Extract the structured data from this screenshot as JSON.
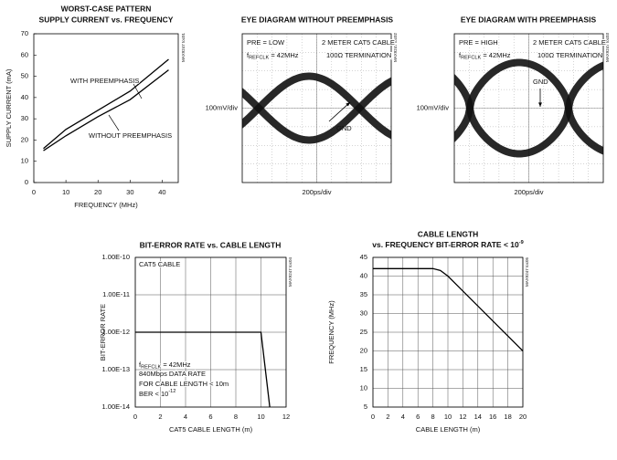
{
  "chart_data": [
    {
      "type": "line",
      "title": [
        "WORST-CASE PATTERN",
        "SUPPLY CURRENT vs. FREQUENCY"
      ],
      "x_label": "FREQUENCY (MHz)",
      "y_label": "SUPPLY CURRENT (mA)",
      "figure_code": "MAX9247 toc01",
      "x": [
        3,
        10,
        20,
        30,
        42
      ],
      "series": [
        {
          "name": "WITH PREEMPHASIS",
          "color": "#000000",
          "values": [
            16,
            25,
            34,
            43,
            58
          ]
        },
        {
          "name": "WITHOUT PREEMPHASIS",
          "color": "#000000",
          "values": [
            15,
            22,
            31,
            39,
            53
          ]
        }
      ],
      "xlim": [
        0,
        45
      ],
      "xticks": [
        0,
        10,
        20,
        30,
        40
      ],
      "ylim": [
        0,
        70
      ],
      "yticks": [
        0,
        10,
        20,
        30,
        40,
        50,
        60,
        70
      ],
      "grid": false
    },
    {
      "type": "eye",
      "title": [
        "EYE DIAGRAM WITHOUT PREEMPHASIS"
      ],
      "figure_code": "MAX9247 toc02",
      "annotations": [
        "PRE = LOW",
        {
          "text": "f",
          "sub": "REFCLK",
          "tail": " = 42MHz"
        },
        "2 METER CAT5 CABLE",
        "100Ω TERMINATION",
        "GND"
      ],
      "y_label": "100mV/div",
      "x_label": "200ps/div"
    },
    {
      "type": "eye",
      "title": [
        "EYE DIAGRAM WITH PREEMPHASIS"
      ],
      "figure_code": "MAX9247 toc03",
      "annotations": [
        "PRE = HIGH",
        {
          "text": "f",
          "sub": "REFCLK",
          "tail": " = 42MHz"
        },
        "2 METER CAT5 CABLE",
        "100Ω TERMINATION",
        "GND"
      ],
      "y_label": "100mV/div",
      "x_label": "200ps/div"
    },
    {
      "type": "line",
      "title": [
        "BIT-ERROR RATE vs. CABLE LENGTH"
      ],
      "x_label": "CAT5 CABLE LENGTH (m)",
      "y_label": "BIT-ERROR RATE",
      "figure_code": "MAX9247 toc04",
      "annotations": [
        "CAT5 CABLE",
        {
          "text": "f",
          "sub": "REFCLK",
          "tail": " = 42MHz"
        },
        "840Mbps DATA RATE",
        "FOR CABLE LENGTH < 10m",
        {
          "text": "BER < 10",
          "sup": "-12"
        }
      ],
      "x": [
        0,
        10,
        10.7
      ],
      "series": [
        {
          "color": "#000000",
          "values": [
            1e-12,
            1e-12,
            1e-14
          ]
        }
      ],
      "xlim": [
        0,
        12
      ],
      "xticks": [
        0,
        2,
        4,
        6,
        8,
        10,
        12
      ],
      "log_y": true,
      "ylim": [
        1e-14,
        1e-10
      ],
      "yticks": [
        {
          "value": 1e-14,
          "label": "1.00E-14"
        },
        {
          "value": 1e-13,
          "label": "1.00E-13"
        },
        {
          "value": 1e-12,
          "label": "1.00E-12"
        },
        {
          "value": 1e-11,
          "label": "1.00E-11"
        },
        {
          "value": 1e-10,
          "label": "1.00E-10"
        }
      ],
      "grid": true
    },
    {
      "type": "line",
      "title": [
        "CABLE LENGTH",
        {
          "text": "vs. FREQUENCY BIT-ERROR RATE < 10",
          "sup": "-9"
        }
      ],
      "x_label": "CABLE LENGTH (m)",
      "y_label": "FREQUENCY (MHz)",
      "figure_code": "MAX9247 toc05",
      "x": [
        0,
        8,
        9,
        10,
        20
      ],
      "series": [
        {
          "color": "#000000",
          "values": [
            42,
            42,
            41.5,
            40,
            20
          ]
        }
      ],
      "xlim": [
        0,
        20
      ],
      "xticks": [
        0,
        2,
        4,
        6,
        8,
        10,
        12,
        14,
        16,
        18,
        20
      ],
      "ylim": [
        5,
        45
      ],
      "yticks": [
        5,
        10,
        15,
        20,
        25,
        30,
        35,
        40,
        45
      ],
      "grid": true
    }
  ]
}
